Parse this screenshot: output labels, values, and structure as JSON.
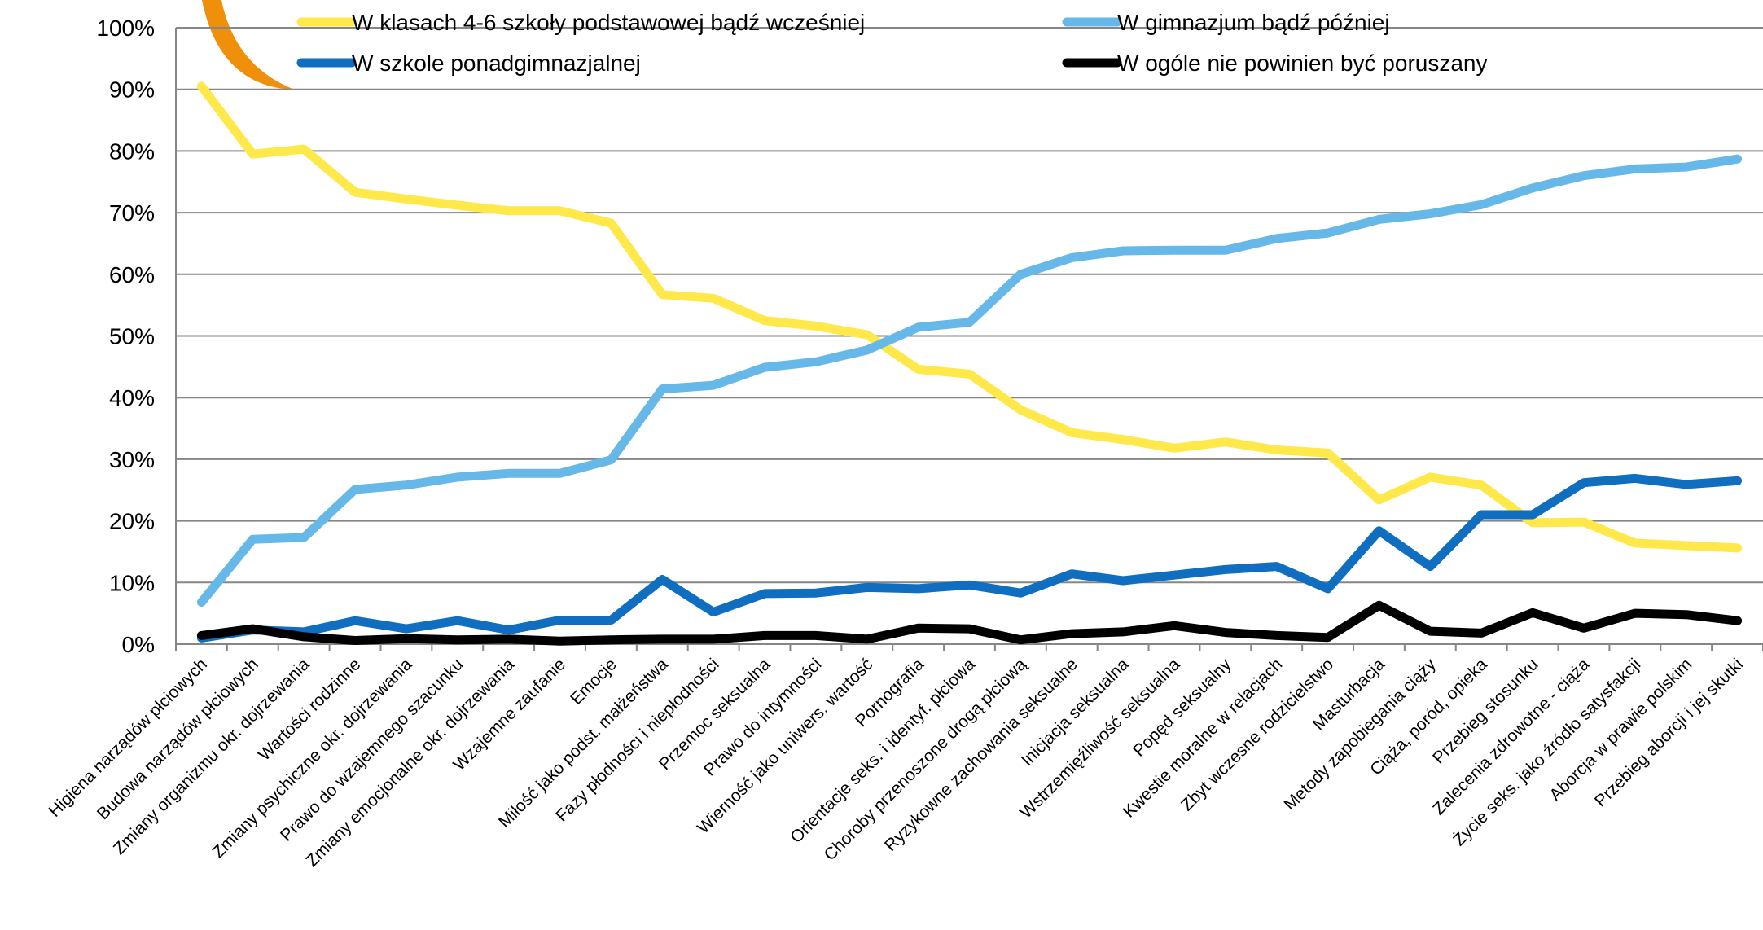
{
  "chart_data": {
    "type": "line",
    "categories": [
      "Higiena narządów płciowych",
      "Budowa narządów płciowych",
      "Zmiany organizmu okr. dojrzewania",
      "Wartości rodzinne",
      "Zmiany psychiczne okr. dojrzewania",
      "Prawo do wzajemnego szacunku",
      "Zmiany emocjonalne okr. dojrzewania",
      "Wzajemne zaufanie",
      "Emocje",
      "Miłość jako podst. małżeństwa",
      "Fazy płodności i niepłodności",
      "Przemoc seksualna",
      "Prawo do intymności",
      "Wierność jako uniwers. wartość",
      "Pornografia",
      "Orientacje seks. i identyf. płciowa",
      "Choroby przenoszone drogą płciową",
      "Ryzykowne zachowania seksualne",
      "Inicjacja seksualna",
      "Wstrzemięźliwość seksualna",
      "Popęd seksualny",
      "Kwestie moralne w relacjach",
      "Zbyt wczesne rodzicielstwo",
      "Masturbacja",
      "Metody zapobiegania ciąży",
      "Ciąża, poród, opieka",
      "Przebieg stosunku",
      "Zalecenia zdrowotne - ciąża",
      "Życie seks. jako źródło satysfakcji",
      "Aborcja w prawie polskim",
      "Przebieg aborcji i jej skutki"
    ],
    "series": [
      {
        "name": "W klasach 4-6 szkoły podstawowej bądź wcześniej",
        "color": "#FFE84A",
        "values": [
          90.5,
          79.5,
          80.3,
          73.3,
          72.2,
          71.2,
          70.3,
          70.3,
          68.3,
          56.7,
          56.1,
          52.5,
          51.6,
          50.2,
          44.6,
          43.8,
          38.0,
          34.3,
          33.2,
          31.8,
          32.8,
          31.5,
          31.0,
          23.4,
          27.1,
          25.8,
          19.7,
          19.8,
          16.4,
          16.0,
          15.6
        ]
      },
      {
        "name": "W gimnazjum bądź później",
        "color": "#66B8E8",
        "values": [
          6.8,
          17.0,
          17.3,
          25.1,
          25.8,
          27.1,
          27.7,
          27.7,
          29.9,
          41.4,
          42.0,
          44.9,
          45.8,
          47.7,
          51.4,
          52.2,
          60.0,
          62.7,
          63.8,
          63.9,
          63.9,
          65.8,
          66.7,
          68.9,
          69.8,
          71.3,
          74.0,
          76.0,
          77.1,
          77.4,
          78.7
        ]
      },
      {
        "name": "W szkole ponadgimnazjalnej",
        "color": "#0F6EC0",
        "values": [
          1.0,
          2.3,
          2.0,
          3.8,
          2.5,
          3.8,
          2.3,
          3.9,
          3.9,
          10.5,
          5.2,
          8.2,
          8.3,
          9.2,
          9.0,
          9.6,
          8.3,
          11.4,
          10.3,
          11.2,
          12.1,
          12.6,
          9.0,
          18.4,
          12.6,
          21.0,
          21.0,
          26.2,
          26.9,
          25.9,
          26.5
        ]
      },
      {
        "name": "W ogóle nie powinien być poruszany",
        "color": "#000000",
        "values": [
          1.4,
          2.5,
          1.2,
          0.6,
          0.9,
          0.7,
          0.8,
          0.5,
          0.7,
          0.8,
          0.8,
          1.4,
          1.4,
          0.8,
          2.6,
          2.5,
          0.7,
          1.7,
          2.0,
          3.0,
          1.9,
          1.4,
          1.1,
          6.3,
          2.1,
          1.8,
          5.1,
          2.6,
          5.0,
          4.8,
          3.8
        ]
      }
    ],
    "y_ticks": [
      "0%",
      "10%",
      "20%",
      "30%",
      "40%",
      "50%",
      "60%",
      "70%",
      "80%",
      "90%",
      "100%"
    ],
    "ylim": [
      0,
      100
    ],
    "grid": true,
    "legend_position": "top"
  },
  "decoration": {
    "corner_shape": "orange-crescent-logo",
    "color": "#F0900A"
  }
}
